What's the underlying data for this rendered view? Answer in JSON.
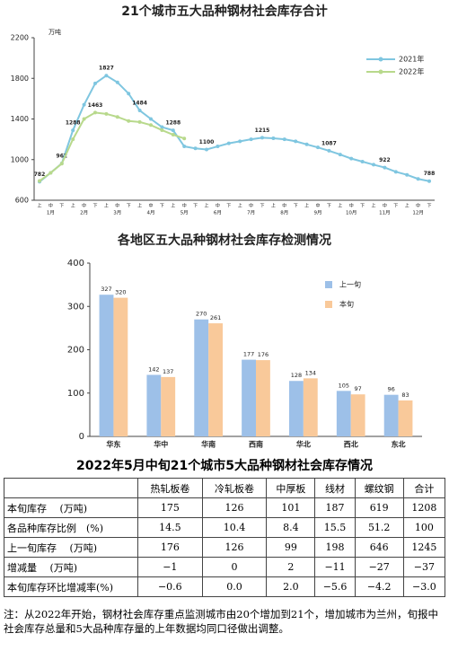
{
  "chart_data": [
    {
      "type": "line",
      "title": "21个城市五大品种钢材社会库存合计",
      "unit": "万吨",
      "categories": [
        "上",
        "中",
        "下",
        "上",
        "中",
        "下",
        "上",
        "中",
        "下",
        "上",
        "中",
        "下",
        "上",
        "中",
        "下",
        "上",
        "中",
        "下",
        "上",
        "中",
        "下",
        "上",
        "中",
        "下",
        "上",
        "中",
        "下",
        "上",
        "中",
        "下",
        "上",
        "中",
        "下",
        "上",
        "中",
        "下"
      ],
      "months": [
        "1月",
        "2月",
        "3月",
        "4月",
        "5月",
        "6月",
        "7月",
        "8月",
        "9月",
        "10月",
        "11月",
        "12月"
      ],
      "ylim": [
        600,
        2200
      ],
      "yticks": [
        600,
        1000,
        1400,
        1800,
        2200
      ],
      "legend": "upper right",
      "series": [
        {
          "name": "2021年",
          "color": "#7fc6e0",
          "values": [
            782,
            870,
            962,
            1288,
            1540,
            1750,
            1827,
            1760,
            1650,
            1484,
            1400,
            1320,
            1288,
            1130,
            1110,
            1100,
            1130,
            1160,
            1180,
            1200,
            1215,
            1210,
            1200,
            1180,
            1150,
            1120,
            1087,
            1050,
            1010,
            980,
            950,
            922,
            880,
            850,
            810,
            788
          ],
          "value_labels": [
            782,
            null,
            962,
            1288,
            null,
            null,
            1827,
            null,
            null,
            1484,
            null,
            null,
            1288,
            null,
            null,
            1100,
            null,
            null,
            null,
            null,
            1215,
            null,
            null,
            null,
            null,
            null,
            1087,
            null,
            null,
            null,
            null,
            922,
            null,
            null,
            null,
            788
          ]
        },
        {
          "name": "2022年",
          "color": "#b8d98c",
          "values": [
            790,
            870,
            960,
            1200,
            1400,
            1463,
            1450,
            1420,
            1380,
            1370,
            1340,
            1290,
            1245,
            1208,
            null,
            null,
            null,
            null,
            null,
            null,
            null,
            null,
            null,
            null,
            null,
            null,
            null,
            null,
            null,
            null,
            null,
            null,
            null,
            null,
            null,
            null
          ],
          "value_labels": [
            null,
            null,
            null,
            null,
            null,
            1463,
            null,
            null,
            null,
            null,
            null,
            null,
            null,
            null,
            null,
            null,
            null,
            null,
            null,
            null,
            null,
            null,
            null,
            null,
            null,
            null,
            null,
            null,
            null,
            null,
            null,
            null,
            null,
            null,
            null,
            null
          ]
        }
      ]
    },
    {
      "type": "bar",
      "title": "各地区五大品种钢材社会库存检测情况",
      "categories": [
        "华东",
        "华中",
        "华南",
        "西南",
        "华北",
        "西北",
        "东北"
      ],
      "ylim": [
        0,
        400
      ],
      "yticks": [
        0,
        100,
        200,
        300,
        400
      ],
      "legend": "upper right",
      "series": [
        {
          "name": "上一旬",
          "color": "#9dc0e8",
          "values": [
            327,
            142,
            270,
            177,
            128,
            105,
            96
          ]
        },
        {
          "name": "本旬",
          "color": "#f9c99a",
          "values": [
            320,
            137,
            261,
            176,
            134,
            97,
            83
          ]
        }
      ]
    }
  ],
  "table": {
    "title": "2022年5月中旬21个城市5大品种钢材社会库存情况",
    "header": [
      "",
      "热轧板卷",
      "冷轧板卷",
      "中厚板",
      "线材",
      "螺纹钢",
      "合计"
    ],
    "rows": [
      [
        "本旬库存　 (万吨)",
        "175",
        "126",
        "101",
        "187",
        "619",
        "1208"
      ],
      [
        "各品种库存比例　(%)",
        "14.5",
        "10.4",
        "8.4",
        "15.5",
        "51.2",
        "100"
      ],
      [
        "上一旬库存　 (万吨)",
        "176",
        "126",
        "99",
        "198",
        "646",
        "1245"
      ],
      [
        "增减量　 (万吨)",
        "−1",
        "0",
        "2",
        "−11",
        "−27",
        "−37"
      ],
      [
        "本旬库存环比增减率(%)",
        "−0.6",
        "0.0",
        "2.0",
        "−5.6",
        "−4.2",
        "−3.0"
      ]
    ]
  },
  "note": "注：从2022年开始，钢材社会库存重点监测城市由20个增加到21个，增加城市为兰州，旬报中社会库存总量和5大品种库存量的上年数据均同口径做出调整。"
}
